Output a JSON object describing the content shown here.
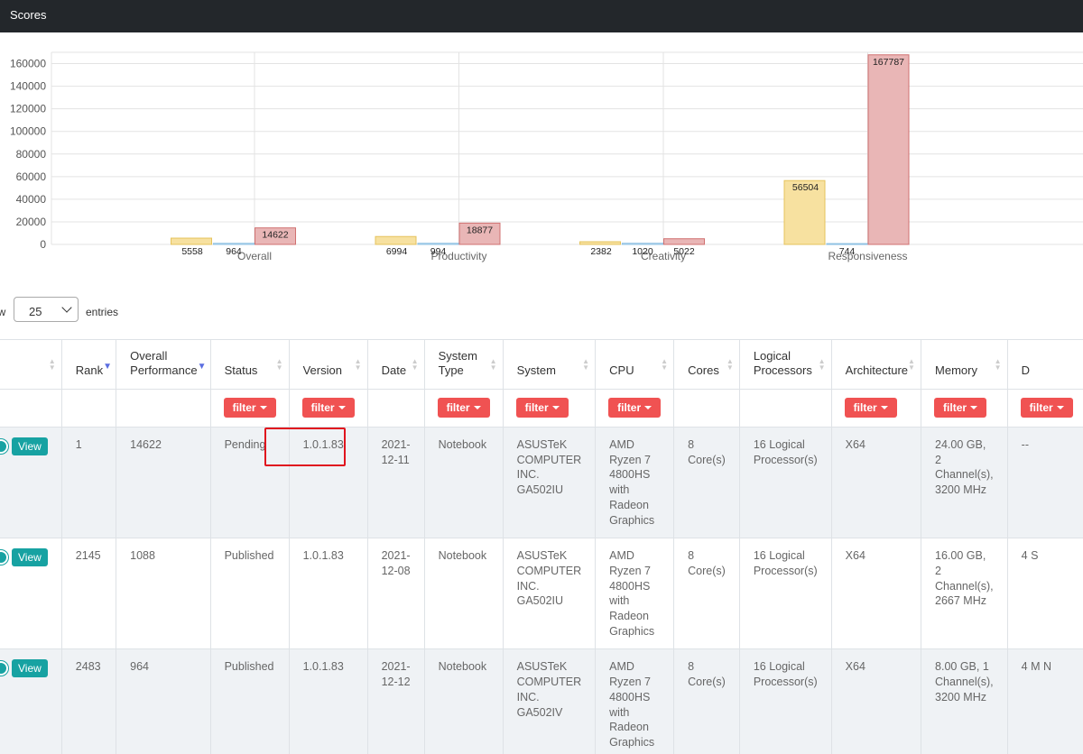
{
  "header": {
    "title": "Scores"
  },
  "chart_data": {
    "type": "bar",
    "categories": [
      "Overall",
      "Productivity",
      "Creativity",
      "Responsiveness"
    ],
    "series": [
      {
        "color": "#f7e1a0",
        "stroke": "#e6c35c",
        "values": [
          5558,
          6994,
          2382,
          56504
        ]
      },
      {
        "color": "#cfe6f5",
        "stroke": "#8fc1e3",
        "values": [
          964,
          994,
          1020,
          744
        ]
      },
      {
        "color": "#e9b6b6",
        "stroke": "#d07070",
        "values": [
          14622,
          18877,
          5022,
          167787
        ]
      }
    ],
    "ylim": [
      0,
      170000
    ],
    "yticks": [
      "0",
      "20000",
      "40000",
      "60000",
      "80000",
      "100000",
      "120000",
      "140000",
      "160000"
    ],
    "ytick_values": [
      0,
      20000,
      40000,
      60000,
      80000,
      100000,
      120000,
      140000,
      160000
    ]
  },
  "length": {
    "prefix": "ow",
    "value": "25",
    "suffix": "entries"
  },
  "table": {
    "headers": [
      "",
      "Rank",
      "Overall Performance",
      "Status",
      "Version",
      "Date",
      "System Type",
      "System",
      "CPU",
      "Cores",
      "Logical Processors",
      "Architecture",
      "Memory",
      "D"
    ],
    "filter_label": "filter",
    "rows": [
      {
        "view": "View",
        "cells": [
          "1",
          "14622",
          "Pending",
          "1.0.1.83",
          "2021-12-11",
          "Notebook",
          "ASUSTeK COMPUTER INC. GA502IU",
          "AMD Ryzen 7 4800HS with Radeon Graphics",
          "8 Core(s)",
          "16 Logical Processor(s)",
          "X64",
          "24.00 GB, 2 Channel(s), 3200 MHz",
          "--"
        ]
      },
      {
        "view": "View",
        "cells": [
          "2145",
          "1088",
          "Published",
          "1.0.1.83",
          "2021-12-08",
          "Notebook",
          "ASUSTeK COMPUTER INC. GA502IU",
          "AMD Ryzen 7 4800HS with Radeon Graphics",
          "8 Core(s)",
          "16 Logical Processor(s)",
          "X64",
          "16.00 GB, 2 Channel(s), 2667 MHz",
          "4 S"
        ]
      },
      {
        "view": "View",
        "cells": [
          "2483",
          "964",
          "Published",
          "1.0.1.83",
          "2021-12-12",
          "Notebook",
          "ASUSTeK COMPUTER INC. GA502IV",
          "AMD Ryzen 7 4800HS with Radeon Graphics",
          "8 Core(s)",
          "16 Logical Processor(s)",
          "X64",
          "8.00 GB, 1 Channel(s), 3200 MHz",
          "4 M N"
        ]
      }
    ]
  }
}
